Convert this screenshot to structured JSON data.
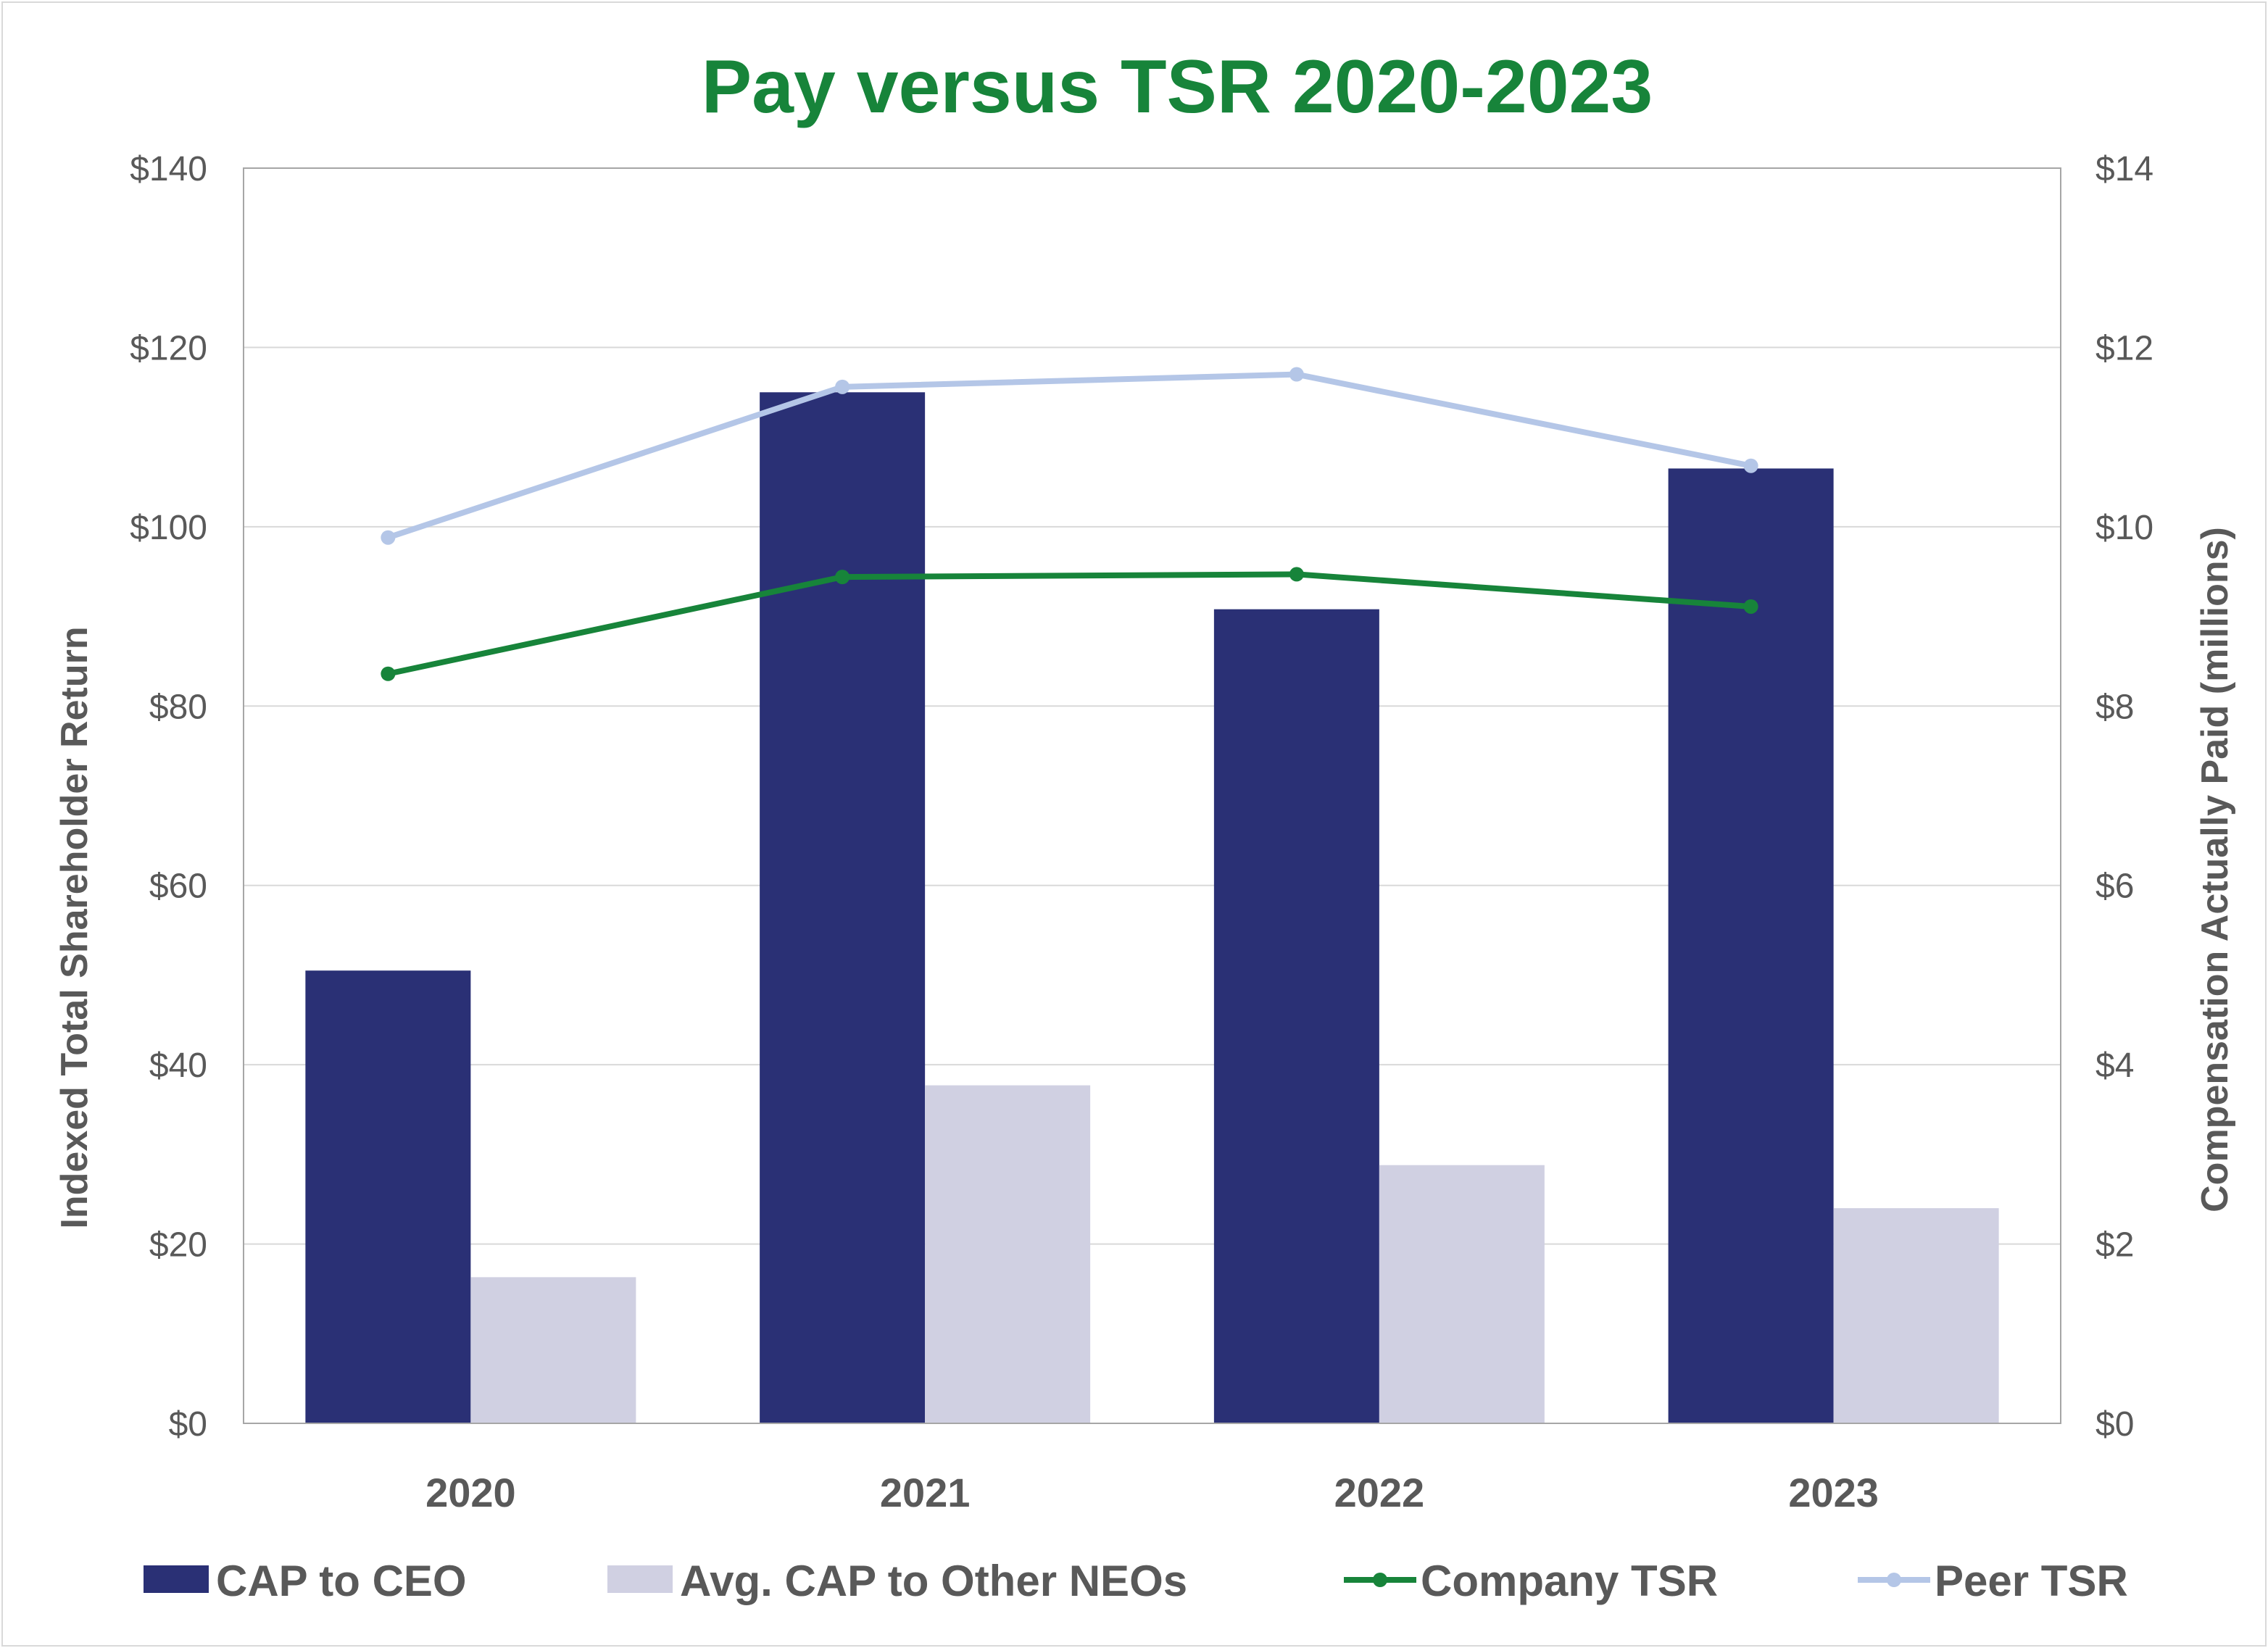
{
  "chart_data": {
    "type": "bar",
    "title": "Pay versus TSR 2020-2023",
    "categories": [
      "2020",
      "2021",
      "2022",
      "2023"
    ],
    "y_left": {
      "label": "Indexed Total Shareholder Return",
      "range": [
        0,
        140
      ],
      "ticks": [
        0,
        20,
        40,
        60,
        80,
        100,
        120,
        140
      ],
      "tick_labels": [
        "$0",
        "$20",
        "$40",
        "$60",
        "$80",
        "$100",
        "$120",
        "$140"
      ]
    },
    "y_right": {
      "label": "Compensation Actually Paid (millions)",
      "range": [
        0,
        14
      ],
      "ticks": [
        0,
        2,
        4,
        6,
        8,
        10,
        12,
        14
      ],
      "tick_labels": [
        "$0",
        "$2",
        "$4",
        "$6",
        "$8",
        "$10",
        "$12",
        "$14"
      ]
    },
    "grid": true,
    "legend_position": "bottom",
    "bar_series": [
      {
        "name": "CAP to CEO",
        "axis": "right",
        "color": "#2a3075",
        "values": [
          5.05,
          11.5,
          9.08,
          10.65
        ]
      },
      {
        "name": "Avg. CAP to Other NEOs",
        "axis": "right",
        "color": "#d0d0e2",
        "values": [
          1.63,
          3.77,
          2.88,
          2.4
        ]
      }
    ],
    "line_series": [
      {
        "name": "Company TSR",
        "axis": "left",
        "color": "#17843a",
        "values": [
          83.6,
          94.4,
          94.7,
          91.1
        ]
      },
      {
        "name": "Peer TSR",
        "axis": "left",
        "color": "#b4c6e7",
        "values": [
          98.8,
          115.6,
          117.0,
          106.8
        ]
      }
    ],
    "colors": {
      "title": "#17843a",
      "grid": "#d9d9d9",
      "axis_text": "#595959"
    }
  }
}
